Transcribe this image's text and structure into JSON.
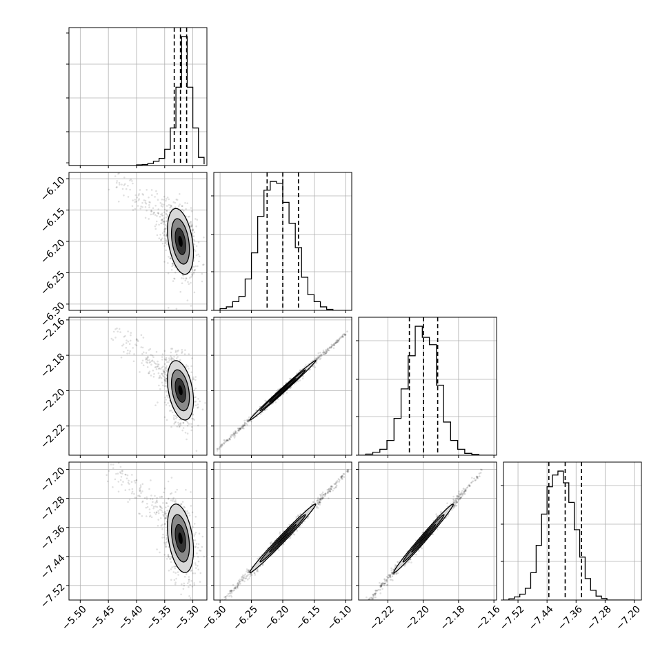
{
  "chart_data": {
    "type": "corner",
    "parameters": [
      {
        "ticks": [
          "−5.50",
          "−5.45",
          "−5.40",
          "−5.35",
          "−5.30"
        ],
        "tick_values": [
          -5.5,
          -5.45,
          -5.4,
          -5.35,
          -5.3
        ],
        "range": [
          -5.52,
          -5.275
        ],
        "quantiles": [
          -5.333,
          -5.322,
          -5.311
        ],
        "hist": {
          "bin_edges": [
            -5.52,
            -5.51,
            -5.5,
            -5.49,
            -5.48,
            -5.47,
            -5.46,
            -5.45,
            -5.44,
            -5.43,
            -5.42,
            -5.41,
            -5.4,
            -5.39,
            -5.38,
            -5.37,
            -5.36,
            -5.35,
            -5.34,
            -5.33,
            -5.32,
            -5.31,
            -5.3,
            -5.29,
            -5.28
          ],
          "counts": [
            0,
            0,
            0,
            0,
            0,
            0,
            0,
            0,
            0,
            0,
            0,
            0,
            0.2,
            0.3,
            0.6,
            1.3,
            2.2,
            5,
            11.5,
            24,
            39.5,
            24,
            11.5,
            2.5,
            0.4
          ]
        }
      },
      {
        "ticks": [
          "−6.30",
          "−6.25",
          "−6.20",
          "−6.15",
          "−6.10"
        ],
        "tick_values": [
          -6.3,
          -6.25,
          -6.2,
          -6.15,
          -6.1
        ],
        "range": [
          -6.31,
          -6.09
        ],
        "quantiles": [
          -6.225,
          -6.2,
          -6.175
        ],
        "hist": {
          "bin_edges": [
            -6.31,
            -6.3,
            -6.29,
            -6.28,
            -6.27,
            -6.26,
            -6.25,
            -6.24,
            -6.23,
            -6.22,
            -6.21,
            -6.2,
            -6.19,
            -6.18,
            -6.17,
            -6.16,
            -6.15,
            -6.14,
            -6.13,
            -6.12,
            -6.11,
            -6.1,
            -6.09
          ],
          "counts": [
            0,
            0.5,
            1,
            2.5,
            4,
            9,
            16.5,
            27,
            34.5,
            37,
            36.5,
            31,
            25,
            18,
            9.5,
            4.5,
            2.5,
            1,
            0.3,
            0,
            0,
            0
          ]
        }
      },
      {
        "ticks": [
          "−2.22",
          "−2.20",
          "−2.18",
          "−2.16"
        ],
        "tick_values": [
          -2.22,
          -2.2,
          -2.18,
          -2.16
        ],
        "range": [
          -2.2365,
          -2.1585
        ],
        "quantiles": [
          -2.2078,
          -2.1998,
          -2.1918
        ],
        "hist": {
          "bin_edges": [
            -2.2365,
            -2.2325,
            -2.2285,
            -2.2245,
            -2.2205,
            -2.2165,
            -2.2125,
            -2.2085,
            -2.2045,
            -2.2005,
            -2.1965,
            -2.1925,
            -2.1885,
            -2.1845,
            -2.1805,
            -2.1765,
            -2.1725,
            -2.1685,
            -2.1645,
            -2.1605
          ],
          "counts": [
            0,
            0.3,
            0.8,
            1.6,
            4,
            10,
            18,
            27,
            35,
            32,
            30,
            19,
            9,
            4,
            1.6,
            0.5,
            0.2,
            0,
            0
          ]
        }
      },
      {
        "ticks": [
          "−7.52",
          "−7.44",
          "−7.36",
          "−7.28",
          "−7.20"
        ],
        "tick_values": [
          -7.52,
          -7.44,
          -7.36,
          -7.28,
          -7.2
        ],
        "range": [
          -7.56,
          -7.18
        ],
        "quantiles": [
          -7.435,
          -7.39,
          -7.345
        ],
        "hist": {
          "bin_edges": [
            -7.56,
            -7.545,
            -7.53,
            -7.515,
            -7.5,
            -7.485,
            -7.47,
            -7.455,
            -7.44,
            -7.425,
            -7.41,
            -7.395,
            -7.38,
            -7.365,
            -7.35,
            -7.335,
            -7.32,
            -7.305,
            -7.29,
            -7.275,
            -7.26,
            -7.245,
            -7.23,
            -7.215,
            -7.2
          ],
          "counts": [
            0,
            0.3,
            0.8,
            1.5,
            3,
            7,
            14,
            22,
            29,
            32,
            33,
            30,
            25,
            18,
            11,
            5.5,
            2.5,
            1,
            0.4,
            0,
            0,
            0,
            0,
            0
          ]
        }
      }
    ],
    "pairs": [
      {
        "row": 1,
        "col": 0,
        "center": [
          -5.322,
          -6.2
        ],
        "sd": [
          0.011,
          0.025
        ],
        "rho": -0.35,
        "tail": {
          "from": [
            -5.44,
            -6.1
          ],
          "to": [
            -5.33,
            -6.18
          ]
        }
      },
      {
        "row": 2,
        "col": 0,
        "center": [
          -5.322,
          -2.1998
        ],
        "sd": [
          0.011,
          0.008
        ],
        "rho": -0.35,
        "tail": {
          "from": [
            -5.44,
            -2.166
          ],
          "to": [
            -5.33,
            -2.196
          ]
        }
      },
      {
        "row": 3,
        "col": 0,
        "center": [
          -5.322,
          -7.39
        ],
        "sd": [
          0.011,
          0.045
        ],
        "rho": -0.35,
        "tail": {
          "from": [
            -5.44,
            -7.2
          ],
          "to": [
            -5.33,
            -7.36
          ]
        }
      },
      {
        "row": 2,
        "col": 1,
        "center": [
          -6.2,
          -2.1998
        ],
        "sd": [
          0.025,
          0.008
        ],
        "rho": 0.995
      },
      {
        "row": 3,
        "col": 1,
        "center": [
          -6.2,
          -7.39
        ],
        "sd": [
          0.025,
          0.045
        ],
        "rho": 0.99
      },
      {
        "row": 3,
        "col": 2,
        "center": [
          -2.1998,
          -7.39
        ],
        "sd": [
          0.008,
          0.045
        ],
        "rho": 0.99
      }
    ],
    "grid": true,
    "colors": {
      "line": "#000000",
      "grid": "#b0b0b0",
      "points": "#000000",
      "fill_outer": "#d8d8d8",
      "fill_mid": "#8a8a8a",
      "fill_inner": "#333333"
    }
  }
}
